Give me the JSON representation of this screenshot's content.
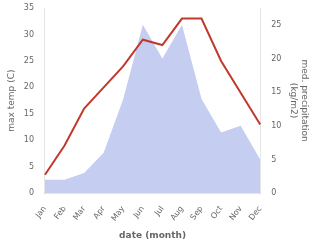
{
  "chart_data": {
    "type": "line",
    "xlabel": "date (month)",
    "ylabel": "max temp (C)",
    "y2label": "med. precipitation\n(kg/m2)",
    "categories": [
      "Jan",
      "Feb",
      "Mar",
      "Apr",
      "May",
      "Jun",
      "Jul",
      "Aug",
      "Sep",
      "Oct",
      "Nov",
      "Dec"
    ],
    "series": [
      {
        "type": "line",
        "color": "#c0392b",
        "values": [
          3.5,
          9,
          16,
          20,
          24,
          29,
          28,
          33,
          33,
          25,
          19,
          13
        ]
      },
      {
        "type": "area",
        "color": "#c5cdf0",
        "axis": "y2",
        "values": [
          2,
          2,
          3,
          6,
          14,
          25,
          20,
          25,
          14,
          9,
          10,
          5
        ]
      }
    ],
    "ylim": [
      0,
      35
    ],
    "yticks": [
      0,
      5,
      10,
      15,
      20,
      25,
      30,
      35
    ],
    "y2lim": [
      0,
      27.5
    ],
    "y2ticks": [
      0,
      5,
      10,
      15,
      20,
      25
    ],
    "grid": false
  }
}
